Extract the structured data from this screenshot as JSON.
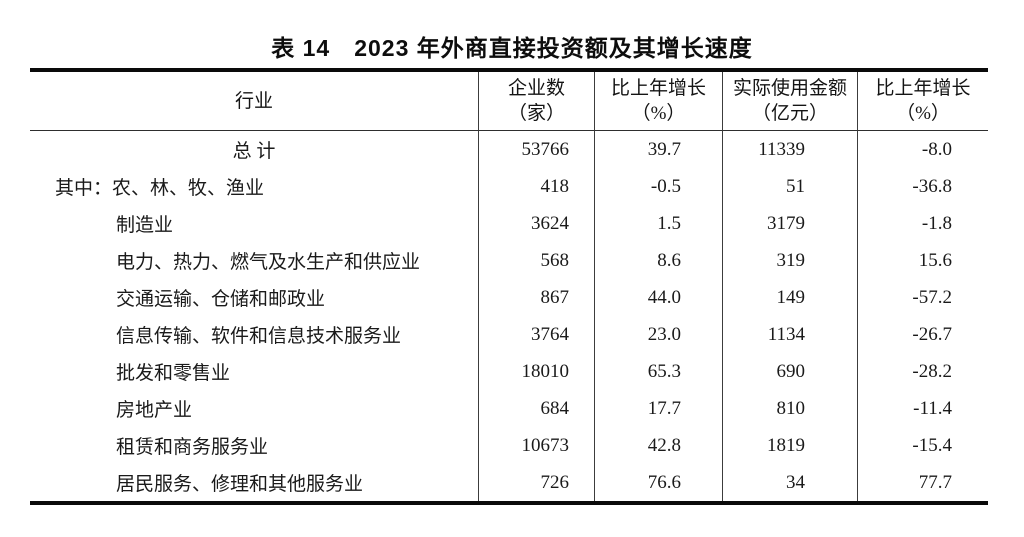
{
  "title": "表 14　2023 年外商直接投资额及其增长速度",
  "table": {
    "headers": {
      "industry": "行业",
      "enterprises_line1": "企业数",
      "enterprises_line2": "（家）",
      "growth1_line1": "比上年增长",
      "growth1_line2": "（%）",
      "amount_line1": "实际使用金额",
      "amount_line2": "（亿元）",
      "growth2_line1": "比上年增长",
      "growth2_line2": "（%）"
    },
    "rows": [
      {
        "industry": "总 计",
        "enterprises": "53766",
        "growth1": "39.7",
        "amount": "11339",
        "growth2": "-8.0"
      },
      {
        "industry": "其中：农、林、牧、渔业",
        "enterprises": "418",
        "growth1": "-0.5",
        "amount": "51",
        "growth2": "-36.8"
      },
      {
        "industry": "制造业",
        "enterprises": "3624",
        "growth1": "1.5",
        "amount": "3179",
        "growth2": "-1.8"
      },
      {
        "industry": "电力、热力、燃气及水生产和供应业",
        "enterprises": "568",
        "growth1": "8.6",
        "amount": "319",
        "growth2": "15.6"
      },
      {
        "industry": "交通运输、仓储和邮政业",
        "enterprises": "867",
        "growth1": "44.0",
        "amount": "149",
        "growth2": "-57.2"
      },
      {
        "industry": "信息传输、软件和信息技术服务业",
        "enterprises": "3764",
        "growth1": "23.0",
        "amount": "1134",
        "growth2": "-26.7"
      },
      {
        "industry": "批发和零售业",
        "enterprises": "18010",
        "growth1": "65.3",
        "amount": "690",
        "growth2": "-28.2"
      },
      {
        "industry": "房地产业",
        "enterprises": "684",
        "growth1": "17.7",
        "amount": "810",
        "growth2": "-11.4"
      },
      {
        "industry": "租赁和商务服务业",
        "enterprises": "10673",
        "growth1": "42.8",
        "amount": "1819",
        "growth2": "-15.4"
      },
      {
        "industry": "居民服务、修理和其他服务业",
        "enterprises": "726",
        "growth1": "76.6",
        "amount": "34",
        "growth2": "77.7"
      }
    ]
  }
}
